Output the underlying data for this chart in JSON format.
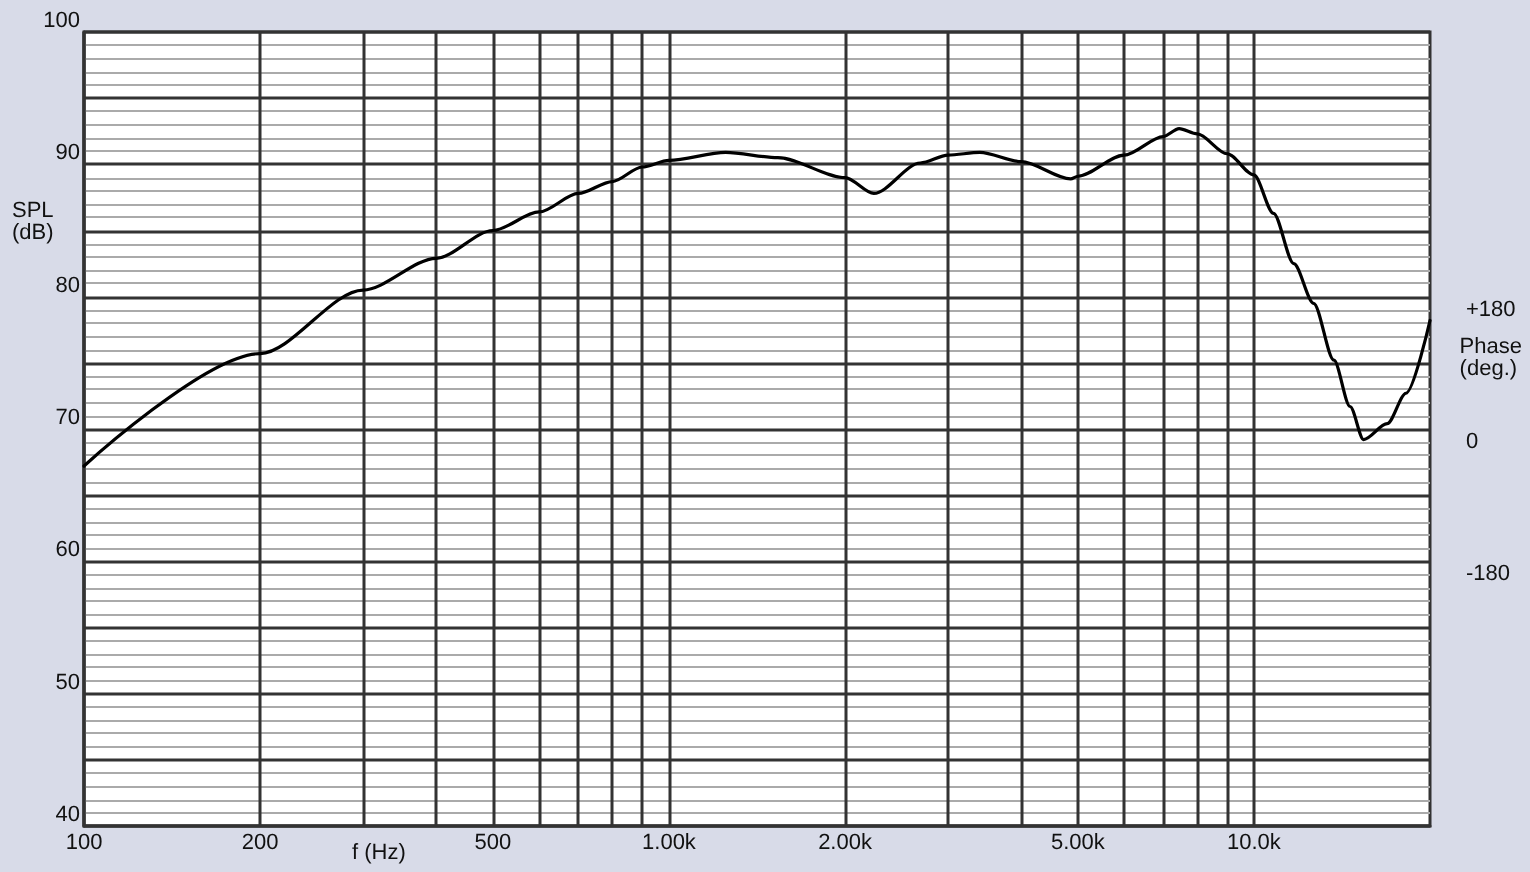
{
  "chart_data": {
    "type": "line",
    "xlabel": "f (Hz)",
    "ylabel": "SPL\n(dB)",
    "y2label": "Phase\n(deg.)",
    "log": "x",
    "grid": true,
    "marker": "none",
    "line_style": "solid",
    "xlim": [
      100,
      20000
    ],
    "xticks": [
      100,
      200,
      {
        "value": 300,
        "label": null
      },
      {
        "value": 400,
        "label": null
      },
      500,
      {
        "value": 600,
        "label": null
      },
      {
        "value": 700,
        "label": null
      },
      {
        "value": 800,
        "label": null
      },
      {
        "value": 900,
        "label": null
      },
      {
        "value": 1000,
        "label": "1.00k"
      },
      {
        "value": 2000,
        "label": "2.00k"
      },
      {
        "value": 3000,
        "label": null
      },
      {
        "value": 4000,
        "label": null
      },
      {
        "value": 5000,
        "label": "5.00k"
      },
      {
        "value": 6000,
        "label": null
      },
      {
        "value": 7000,
        "label": null
      },
      {
        "value": 8000,
        "label": null
      },
      {
        "value": 9000,
        "label": null
      },
      {
        "value": 10000,
        "label": "10.0k"
      }
    ],
    "ylim": [
      40,
      100
    ],
    "yticks": [
      40,
      {
        "value": 45,
        "label": null
      },
      50,
      {
        "value": 55,
        "label": null
      },
      60,
      {
        "value": 65,
        "label": null
      },
      70,
      {
        "value": 75,
        "label": null
      },
      80,
      {
        "value": 85,
        "label": null
      },
      90,
      {
        "value": 95,
        "label": null
      },
      100
    ],
    "y2lim": [
      -524,
      559
    ],
    "y2ticks": [
      {
        "value": 180,
        "label": "+180"
      },
      0,
      -180
    ],
    "series": [
      {
        "color": "#000000",
        "x": [
          100,
          200,
          300,
          400,
          500,
          600,
          700,
          800,
          900,
          1000,
          1250,
          1535,
          2000,
          2240,
          2690,
          3000,
          3400,
          4000,
          4860,
          5000,
          6000,
          7000,
          7450,
          8000,
          9000,
          10000,
          10800,
          11700,
          12650,
          13700,
          14600,
          15400,
          16900,
          18200,
          20000
        ],
        "values": [
          67.2,
          75.7,
          80.5,
          82.9,
          85.0,
          86.4,
          87.8,
          88.7,
          89.8,
          90.3,
          90.9,
          90.5,
          89.0,
          87.8,
          90.1,
          90.7,
          90.9,
          90.2,
          88.9,
          89.1,
          90.7,
          92.1,
          92.7,
          92.3,
          90.8,
          89.2,
          86.3,
          82.5,
          79.5,
          75.2,
          71.7,
          69.2,
          70.4,
          72.7,
          78.2
        ]
      }
    ]
  }
}
